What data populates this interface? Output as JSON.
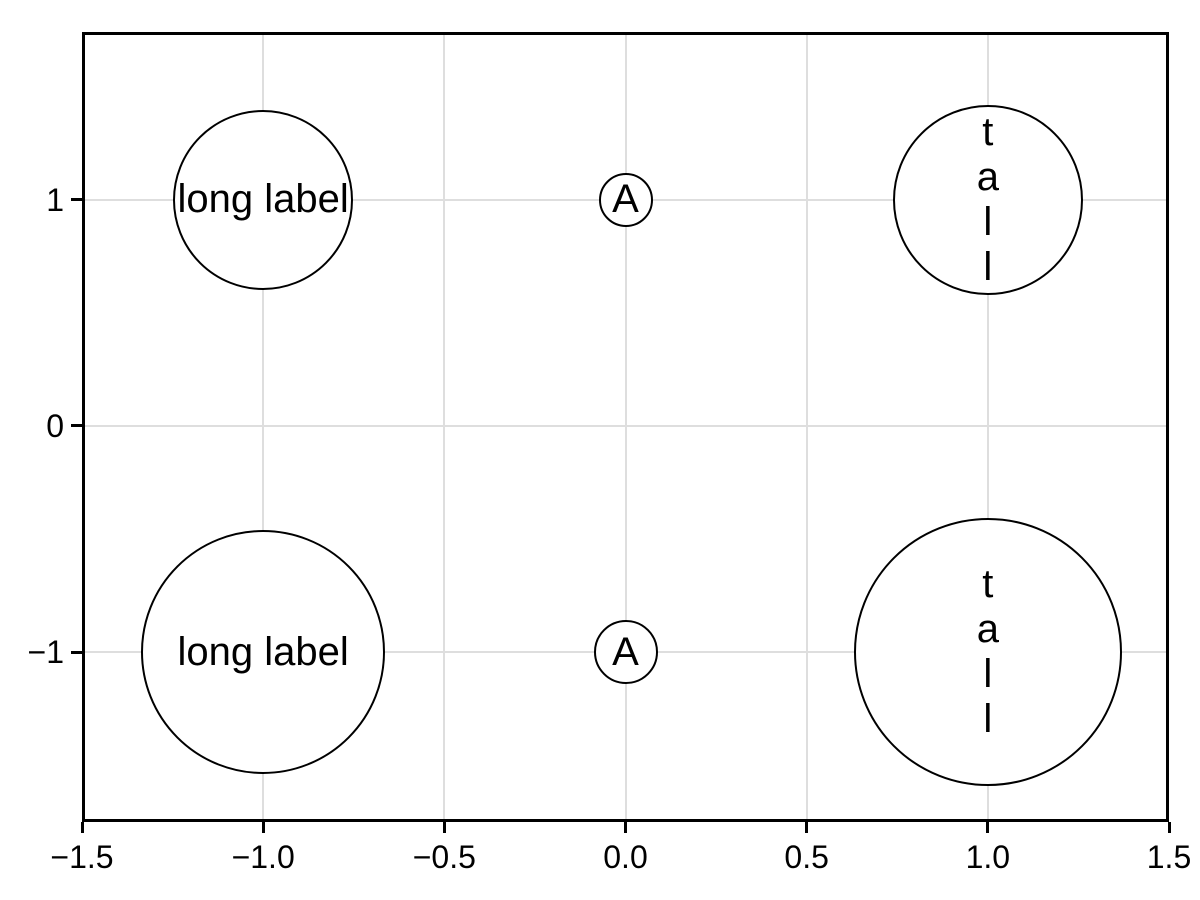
{
  "figure": {
    "background": "#ffffff"
  },
  "chart_data": {
    "type": "scatter",
    "subtype": "labeled-bubbles",
    "title": "",
    "xlabel": "",
    "ylabel": "",
    "grid": true,
    "legend": false,
    "x_axis": {
      "range": [
        -1.5,
        1.5
      ],
      "tick_values": [
        -1.5,
        -1.0,
        -0.5,
        0.0,
        0.5,
        1.0,
        1.5
      ],
      "tick_labels": [
        "−1.5",
        "−1.0",
        "−0.5",
        "0.0",
        "0.5",
        "1.0",
        "1.5"
      ]
    },
    "y_axis": {
      "range": [
        -1.75,
        1.74
      ],
      "tick_values": [
        -1,
        0,
        1
      ],
      "tick_labels": [
        "−1",
        "0",
        "1"
      ]
    },
    "points": [
      {
        "x": -1,
        "y": 1,
        "label": "long label",
        "display": "long label",
        "radius_px": 90
      },
      {
        "x": 0,
        "y": 1,
        "label": "A",
        "display": "A",
        "radius_px": 27
      },
      {
        "x": 1,
        "y": 1,
        "label": "tall",
        "display": "t\na\nl\nl",
        "radius_px": 95
      },
      {
        "x": -1,
        "y": -1,
        "label": "long label",
        "display": "long label",
        "radius_px": 122
      },
      {
        "x": 0,
        "y": -1,
        "label": "A",
        "display": "A",
        "radius_px": 32
      },
      {
        "x": 1,
        "y": -1,
        "label": "tall",
        "display": "t\na\nl\nl",
        "radius_px": 134
      }
    ],
    "style": {
      "marker_fill": "#ffffff",
      "marker_stroke": "#000000",
      "grid_color": "#dedede",
      "spine_color": "#000000",
      "text_color": "#000000"
    }
  }
}
